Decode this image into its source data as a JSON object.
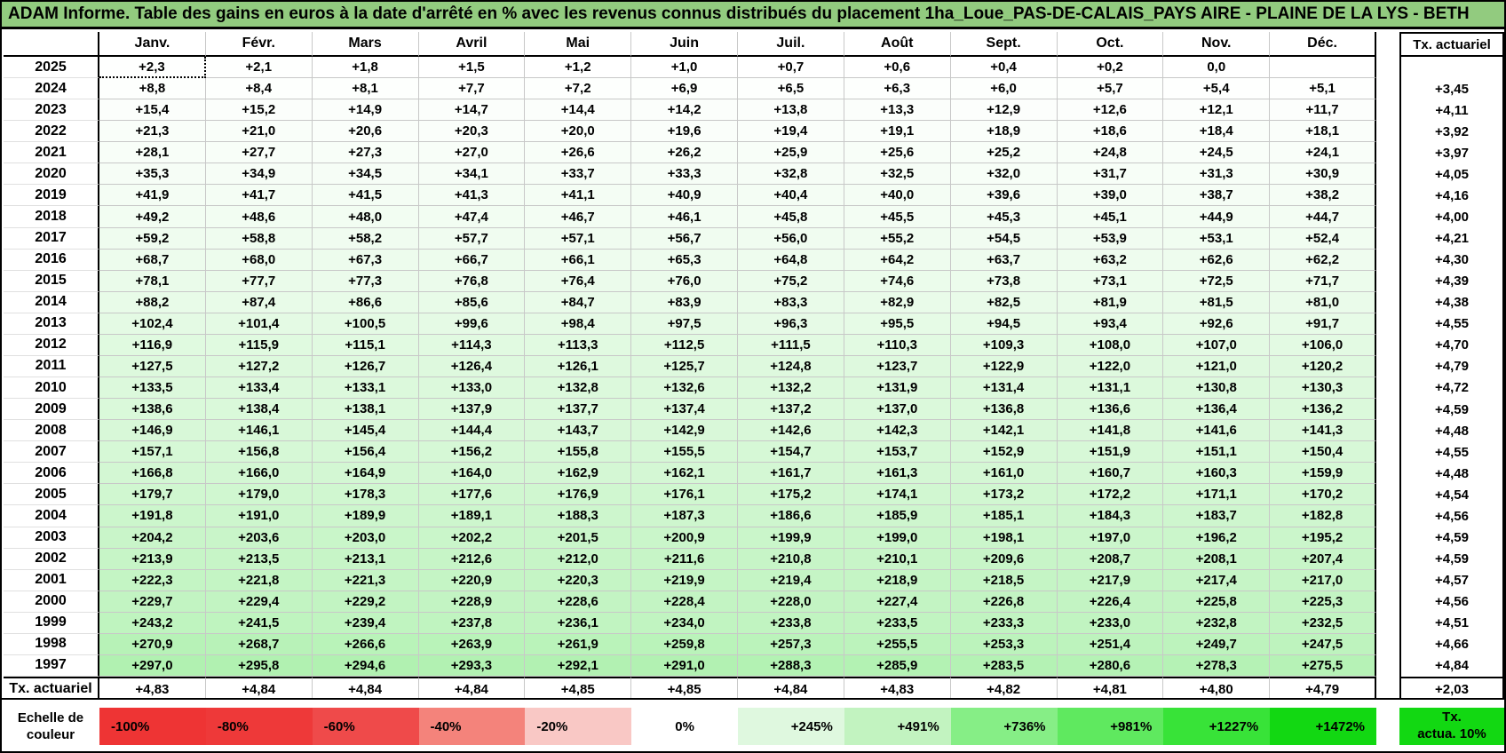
{
  "title": "ADAM Informe. Table des gains en euros à la date d'arrêté en % avec les revenus connus distribués du placement 1ha_Loue_PAS-DE-CALAIS_PAYS AIRE - PLAINE DE LA LYS - BETH",
  "table": {
    "corner_label": "",
    "months": [
      "Janv.",
      "Févr.",
      "Mars",
      "Avril",
      "Mai",
      "Juin",
      "Juil.",
      "Août",
      "Sept.",
      "Oct.",
      "Nov.",
      "Déc."
    ],
    "right_header": "Tx. actuariel",
    "selected_cell": {
      "year": "2025",
      "month": "Janv.",
      "value": "+2,3"
    },
    "rows": [
      {
        "year": "2025",
        "values": [
          "+2,3",
          "+2,1",
          "+1,8",
          "+1,5",
          "+1,2",
          "+1,0",
          "+0,7",
          "+0,6",
          "+0,4",
          "+0,2",
          "0,0",
          ""
        ],
        "tx": ""
      },
      {
        "year": "2024",
        "values": [
          "+8,8",
          "+8,4",
          "+8,1",
          "+7,7",
          "+7,2",
          "+6,9",
          "+6,5",
          "+6,3",
          "+6,0",
          "+5,7",
          "+5,4",
          "+5,1"
        ],
        "tx": "+3,45"
      },
      {
        "year": "2023",
        "values": [
          "+15,4",
          "+15,2",
          "+14,9",
          "+14,7",
          "+14,4",
          "+14,2",
          "+13,8",
          "+13,3",
          "+12,9",
          "+12,6",
          "+12,1",
          "+11,7"
        ],
        "tx": "+4,11"
      },
      {
        "year": "2022",
        "values": [
          "+21,3",
          "+21,0",
          "+20,6",
          "+20,3",
          "+20,0",
          "+19,6",
          "+19,4",
          "+19,1",
          "+18,9",
          "+18,6",
          "+18,4",
          "+18,1"
        ],
        "tx": "+3,92"
      },
      {
        "year": "2021",
        "values": [
          "+28,1",
          "+27,7",
          "+27,3",
          "+27,0",
          "+26,6",
          "+26,2",
          "+25,9",
          "+25,6",
          "+25,2",
          "+24,8",
          "+24,5",
          "+24,1"
        ],
        "tx": "+3,97"
      },
      {
        "year": "2020",
        "values": [
          "+35,3",
          "+34,9",
          "+34,5",
          "+34,1",
          "+33,7",
          "+33,3",
          "+32,8",
          "+32,5",
          "+32,0",
          "+31,7",
          "+31,3",
          "+30,9"
        ],
        "tx": "+4,05"
      },
      {
        "year": "2019",
        "values": [
          "+41,9",
          "+41,7",
          "+41,5",
          "+41,3",
          "+41,1",
          "+40,9",
          "+40,4",
          "+40,0",
          "+39,6",
          "+39,0",
          "+38,7",
          "+38,2"
        ],
        "tx": "+4,16"
      },
      {
        "year": "2018",
        "values": [
          "+49,2",
          "+48,6",
          "+48,0",
          "+47,4",
          "+46,7",
          "+46,1",
          "+45,8",
          "+45,5",
          "+45,3",
          "+45,1",
          "+44,9",
          "+44,7"
        ],
        "tx": "+4,00"
      },
      {
        "year": "2017",
        "values": [
          "+59,2",
          "+58,8",
          "+58,2",
          "+57,7",
          "+57,1",
          "+56,7",
          "+56,0",
          "+55,2",
          "+54,5",
          "+53,9",
          "+53,1",
          "+52,4"
        ],
        "tx": "+4,21"
      },
      {
        "year": "2016",
        "values": [
          "+68,7",
          "+68,0",
          "+67,3",
          "+66,7",
          "+66,1",
          "+65,3",
          "+64,8",
          "+64,2",
          "+63,7",
          "+63,2",
          "+62,6",
          "+62,2"
        ],
        "tx": "+4,30"
      },
      {
        "year": "2015",
        "values": [
          "+78,1",
          "+77,7",
          "+77,3",
          "+76,8",
          "+76,4",
          "+76,0",
          "+75,2",
          "+74,6",
          "+73,8",
          "+73,1",
          "+72,5",
          "+71,7"
        ],
        "tx": "+4,39"
      },
      {
        "year": "2014",
        "values": [
          "+88,2",
          "+87,4",
          "+86,6",
          "+85,6",
          "+84,7",
          "+83,9",
          "+83,3",
          "+82,9",
          "+82,5",
          "+81,9",
          "+81,5",
          "+81,0"
        ],
        "tx": "+4,38"
      },
      {
        "year": "2013",
        "values": [
          "+102,4",
          "+101,4",
          "+100,5",
          "+99,6",
          "+98,4",
          "+97,5",
          "+96,3",
          "+95,5",
          "+94,5",
          "+93,4",
          "+92,6",
          "+91,7"
        ],
        "tx": "+4,55"
      },
      {
        "year": "2012",
        "values": [
          "+116,9",
          "+115,9",
          "+115,1",
          "+114,3",
          "+113,3",
          "+112,5",
          "+111,5",
          "+110,3",
          "+109,3",
          "+108,0",
          "+107,0",
          "+106,0"
        ],
        "tx": "+4,70"
      },
      {
        "year": "2011",
        "values": [
          "+127,5",
          "+127,2",
          "+126,7",
          "+126,4",
          "+126,1",
          "+125,7",
          "+124,8",
          "+123,7",
          "+122,9",
          "+122,0",
          "+121,0",
          "+120,2"
        ],
        "tx": "+4,79"
      },
      {
        "year": "2010",
        "values": [
          "+133,5",
          "+133,4",
          "+133,1",
          "+133,0",
          "+132,8",
          "+132,6",
          "+132,2",
          "+131,9",
          "+131,4",
          "+131,1",
          "+130,8",
          "+130,3"
        ],
        "tx": "+4,72"
      },
      {
        "year": "2009",
        "values": [
          "+138,6",
          "+138,4",
          "+138,1",
          "+137,9",
          "+137,7",
          "+137,4",
          "+137,2",
          "+137,0",
          "+136,8",
          "+136,6",
          "+136,4",
          "+136,2"
        ],
        "tx": "+4,59"
      },
      {
        "year": "2008",
        "values": [
          "+146,9",
          "+146,1",
          "+145,4",
          "+144,4",
          "+143,7",
          "+142,9",
          "+142,6",
          "+142,3",
          "+142,1",
          "+141,8",
          "+141,6",
          "+141,3"
        ],
        "tx": "+4,48"
      },
      {
        "year": "2007",
        "values": [
          "+157,1",
          "+156,8",
          "+156,4",
          "+156,2",
          "+155,8",
          "+155,5",
          "+154,7",
          "+153,7",
          "+152,9",
          "+151,9",
          "+151,1",
          "+150,4"
        ],
        "tx": "+4,55"
      },
      {
        "year": "2006",
        "values": [
          "+166,8",
          "+166,0",
          "+164,9",
          "+164,0",
          "+162,9",
          "+162,1",
          "+161,7",
          "+161,3",
          "+161,0",
          "+160,7",
          "+160,3",
          "+159,9"
        ],
        "tx": "+4,48"
      },
      {
        "year": "2005",
        "values": [
          "+179,7",
          "+179,0",
          "+178,3",
          "+177,6",
          "+176,9",
          "+176,1",
          "+175,2",
          "+174,1",
          "+173,2",
          "+172,2",
          "+171,1",
          "+170,2"
        ],
        "tx": "+4,54"
      },
      {
        "year": "2004",
        "values": [
          "+191,8",
          "+191,0",
          "+189,9",
          "+189,1",
          "+188,3",
          "+187,3",
          "+186,6",
          "+185,9",
          "+185,1",
          "+184,3",
          "+183,7",
          "+182,8"
        ],
        "tx": "+4,56"
      },
      {
        "year": "2003",
        "values": [
          "+204,2",
          "+203,6",
          "+203,0",
          "+202,2",
          "+201,5",
          "+200,9",
          "+199,9",
          "+199,0",
          "+198,1",
          "+197,0",
          "+196,2",
          "+195,2"
        ],
        "tx": "+4,59"
      },
      {
        "year": "2002",
        "values": [
          "+213,9",
          "+213,5",
          "+213,1",
          "+212,6",
          "+212,0",
          "+211,6",
          "+210,8",
          "+210,1",
          "+209,6",
          "+208,7",
          "+208,1",
          "+207,4"
        ],
        "tx": "+4,59"
      },
      {
        "year": "2001",
        "values": [
          "+222,3",
          "+221,8",
          "+221,3",
          "+220,9",
          "+220,3",
          "+219,9",
          "+219,4",
          "+218,9",
          "+218,5",
          "+217,9",
          "+217,4",
          "+217,0"
        ],
        "tx": "+4,57"
      },
      {
        "year": "2000",
        "values": [
          "+229,7",
          "+229,4",
          "+229,2",
          "+228,9",
          "+228,6",
          "+228,4",
          "+228,0",
          "+227,4",
          "+226,8",
          "+226,4",
          "+225,8",
          "+225,3"
        ],
        "tx": "+4,56"
      },
      {
        "year": "1999",
        "values": [
          "+243,2",
          "+241,5",
          "+239,4",
          "+237,8",
          "+236,1",
          "+234,0",
          "+233,8",
          "+233,5",
          "+233,3",
          "+233,0",
          "+232,8",
          "+232,5"
        ],
        "tx": "+4,51"
      },
      {
        "year": "1998",
        "values": [
          "+270,9",
          "+268,7",
          "+266,6",
          "+263,9",
          "+261,9",
          "+259,8",
          "+257,3",
          "+255,5",
          "+253,3",
          "+251,4",
          "+249,7",
          "+247,5"
        ],
        "tx": "+4,66"
      },
      {
        "year": "1997",
        "values": [
          "+297,0",
          "+295,8",
          "+294,6",
          "+293,3",
          "+292,1",
          "+291,0",
          "+288,3",
          "+285,9",
          "+283,5",
          "+280,6",
          "+278,3",
          "+275,5"
        ],
        "tx": "+4,84"
      }
    ],
    "footer": {
      "label": "Tx. actuariel",
      "values": [
        "+4,83",
        "+4,84",
        "+4,84",
        "+4,84",
        "+4,85",
        "+4,85",
        "+4,84",
        "+4,83",
        "+4,82",
        "+4,81",
        "+4,80",
        "+4,79"
      ],
      "tx": "+2,03"
    }
  },
  "legend": {
    "label": "Echelle de couleur",
    "cells": [
      {
        "label": "-100%",
        "color": "#ee3434",
        "align": "left"
      },
      {
        "label": "-80%",
        "color": "#ee3939",
        "align": "left"
      },
      {
        "label": "-60%",
        "color": "#ef4a4a",
        "align": "left"
      },
      {
        "label": "-40%",
        "color": "#f4837b",
        "align": "left"
      },
      {
        "label": "-20%",
        "color": "#f9c8c5",
        "align": "left"
      },
      {
        "label": "0%",
        "color": "#ffffff",
        "align": "center"
      },
      {
        "label": "+245%",
        "color": "#dff8df",
        "align": "right"
      },
      {
        "label": "+491%",
        "color": "#c2f3c0",
        "align": "right"
      },
      {
        "label": "+736%",
        "color": "#86ee86",
        "align": "right"
      },
      {
        "label": "+981%",
        "color": "#5fe95f",
        "align": "right"
      },
      {
        "label": "+1227%",
        "color": "#38e338",
        "align": "right"
      },
      {
        "label": "+1472%",
        "color": "#12d812",
        "align": "right"
      }
    ],
    "tx_box": {
      "line1": "Tx.",
      "line2": "actua. 10%",
      "color": "#12d812"
    }
  },
  "colors": {
    "title_bg": "#92cb7f",
    "grid_line": "#c8c8c8",
    "border": "#000000",
    "scale_max_green": "#12d812",
    "scale_max_value": 1472
  }
}
